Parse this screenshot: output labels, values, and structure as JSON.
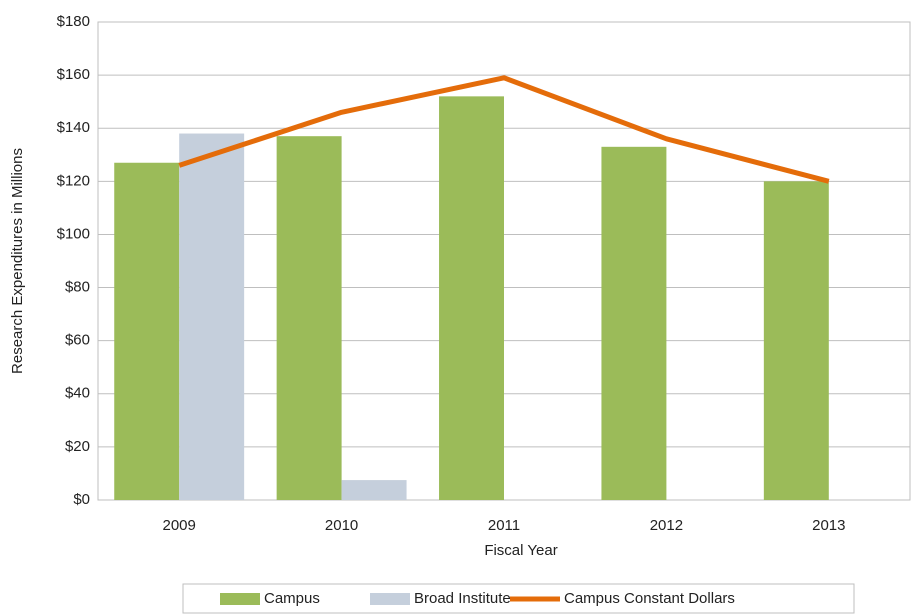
{
  "chart_data": {
    "type": "bar",
    "x_label": "Fiscal Year",
    "y_label": "Research Expenditures in Millions",
    "categories": [
      "2009",
      "2010",
      "2011",
      "2012",
      "2013"
    ],
    "series": [
      {
        "name": "Campus",
        "type": "bar",
        "color": "#9bbb59",
        "values": [
          127,
          137,
          152,
          133,
          120
        ]
      },
      {
        "name": "Broad Institute",
        "type": "bar",
        "color": "#c5cfdc",
        "values": [
          138,
          7.5,
          0,
          0,
          0
        ]
      },
      {
        "name": "Campus Constant Dollars",
        "type": "line",
        "color": "#e46c0a",
        "values": [
          126,
          146,
          159,
          136,
          120
        ]
      }
    ],
    "ylim": [
      0,
      180
    ],
    "yticks": [
      {
        "value": 0,
        "label": "$0"
      },
      {
        "value": 20,
        "label": "$20"
      },
      {
        "value": 40,
        "label": "$40"
      },
      {
        "value": 60,
        "label": "$60"
      },
      {
        "value": 80,
        "label": "$80"
      },
      {
        "value": 100,
        "label": "$100"
      },
      {
        "value": 120,
        "label": "$120"
      },
      {
        "value": 140,
        "label": "$140"
      },
      {
        "value": 160,
        "label": "$160"
      },
      {
        "value": 180,
        "label": "$180"
      }
    ],
    "grid": true,
    "legend": "bottom"
  }
}
